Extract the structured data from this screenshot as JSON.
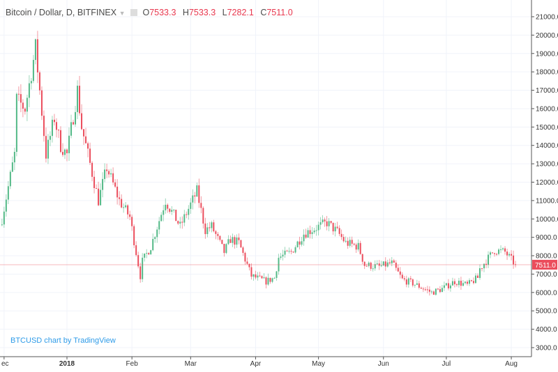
{
  "header": {
    "title": "Bitcoin / Dollar, D, BITFINEX",
    "o_label": "O",
    "o": "7533.3",
    "h_label": "H",
    "h": "7533.3",
    "l_label": "L",
    "l": "7282.1",
    "c_label": "C",
    "c": "7511.0"
  },
  "watermark": "BTCUSD chart by TradingView",
  "colors": {
    "up": "#53b987",
    "down": "#eb4d5c",
    "grid": "#f0f3fa",
    "axis": "#555555",
    "last": "#eb4d5c"
  },
  "chart_data": {
    "type": "candlestick",
    "title": "Bitcoin / Dollar, D, BITFINEX",
    "ylim": [
      2500,
      21500
    ],
    "yticks": [
      3000,
      4000,
      5000,
      6000,
      7000,
      8000,
      9000,
      10000,
      11000,
      12000,
      13000,
      14000,
      15000,
      16000,
      17000,
      18000,
      19000,
      20000,
      21000
    ],
    "xticks": [
      {
        "label": "ec",
        "day": 1
      },
      {
        "label": "2018",
        "day": 31
      },
      {
        "label": "Feb",
        "day": 62
      },
      {
        "label": "Mar",
        "day": 90
      },
      {
        "label": "Apr",
        "day": 121
      },
      {
        "label": "May",
        "day": 151
      },
      {
        "label": "Jun",
        "day": 182
      },
      {
        "label": "Jul",
        "day": 212
      },
      {
        "label": "Aug",
        "day": 243
      }
    ],
    "last_price": "7511.0",
    "last_value": 7511,
    "close_keypoints": [
      [
        0,
        10000
      ],
      [
        6,
        13500
      ],
      [
        7,
        16500
      ],
      [
        11,
        16000
      ],
      [
        16,
        19300
      ],
      [
        21,
        13500
      ],
      [
        25,
        15500
      ],
      [
        28,
        14000
      ],
      [
        31,
        13500
      ],
      [
        36,
        17000
      ],
      [
        38,
        15000
      ],
      [
        41,
        13500
      ],
      [
        46,
        11000
      ],
      [
        50,
        12800
      ],
      [
        56,
        11000
      ],
      [
        61,
        10100
      ],
      [
        66,
        6900
      ],
      [
        67,
        7700
      ],
      [
        71,
        8500
      ],
      [
        78,
        11000
      ],
      [
        85,
        9600
      ],
      [
        93,
        11500
      ],
      [
        97,
        9400
      ],
      [
        100,
        9600
      ],
      [
        106,
        8200
      ],
      [
        109,
        8900
      ],
      [
        113,
        8700
      ],
      [
        119,
        6900
      ],
      [
        126,
        6600
      ],
      [
        130,
        6800
      ],
      [
        132,
        7900
      ],
      [
        138,
        8200
      ],
      [
        144,
        9200
      ],
      [
        155,
        9800
      ],
      [
        160,
        9300
      ],
      [
        164,
        8700
      ],
      [
        170,
        8500
      ],
      [
        173,
        7500
      ],
      [
        180,
        7400
      ],
      [
        186,
        7600
      ],
      [
        191,
        6700
      ],
      [
        196,
        6500
      ],
      [
        205,
        6000
      ],
      [
        210,
        6200
      ],
      [
        216,
        6600
      ],
      [
        222,
        6400
      ],
      [
        227,
        6800
      ],
      [
        228,
        7300
      ],
      [
        235,
        8300
      ],
      [
        240,
        8200
      ],
      [
        245,
        7511
      ]
    ]
  }
}
